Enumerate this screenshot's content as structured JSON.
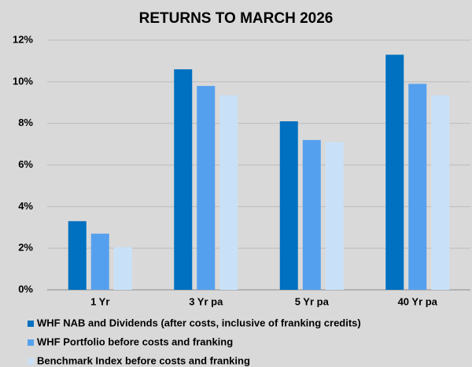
{
  "chart_data": {
    "type": "bar",
    "title": "RETURNS TO MARCH 2026",
    "categories": [
      "1 Yr",
      "3 Yr pa",
      "5 Yr pa",
      "40 Yr pa"
    ],
    "series": [
      {
        "name": "WHF NAB and Dividends (after costs, inclusive of franking credits)",
        "color": "#0070c0",
        "values": [
          3.3,
          10.6,
          8.1,
          11.3
        ]
      },
      {
        "name": "WHF Portfolio before costs and franking",
        "color": "#55a0ee",
        "values": [
          2.7,
          9.8,
          7.2,
          9.9
        ]
      },
      {
        "name": "Benchmark Index before costs and franking",
        "color": "#c9e1f8",
        "values": [
          2.05,
          9.35,
          7.1,
          9.35
        ]
      }
    ],
    "ylim": [
      0,
      12
    ],
    "yticks": [
      {
        "value": 0,
        "label": "0%"
      },
      {
        "value": 2,
        "label": "2%"
      },
      {
        "value": 4,
        "label": "4%"
      },
      {
        "value": 6,
        "label": "6%"
      },
      {
        "value": 8,
        "label": "8%"
      },
      {
        "value": 10,
        "label": "10%"
      },
      {
        "value": 12,
        "label": "12%"
      }
    ],
    "grid": true,
    "legend": "bottom"
  }
}
